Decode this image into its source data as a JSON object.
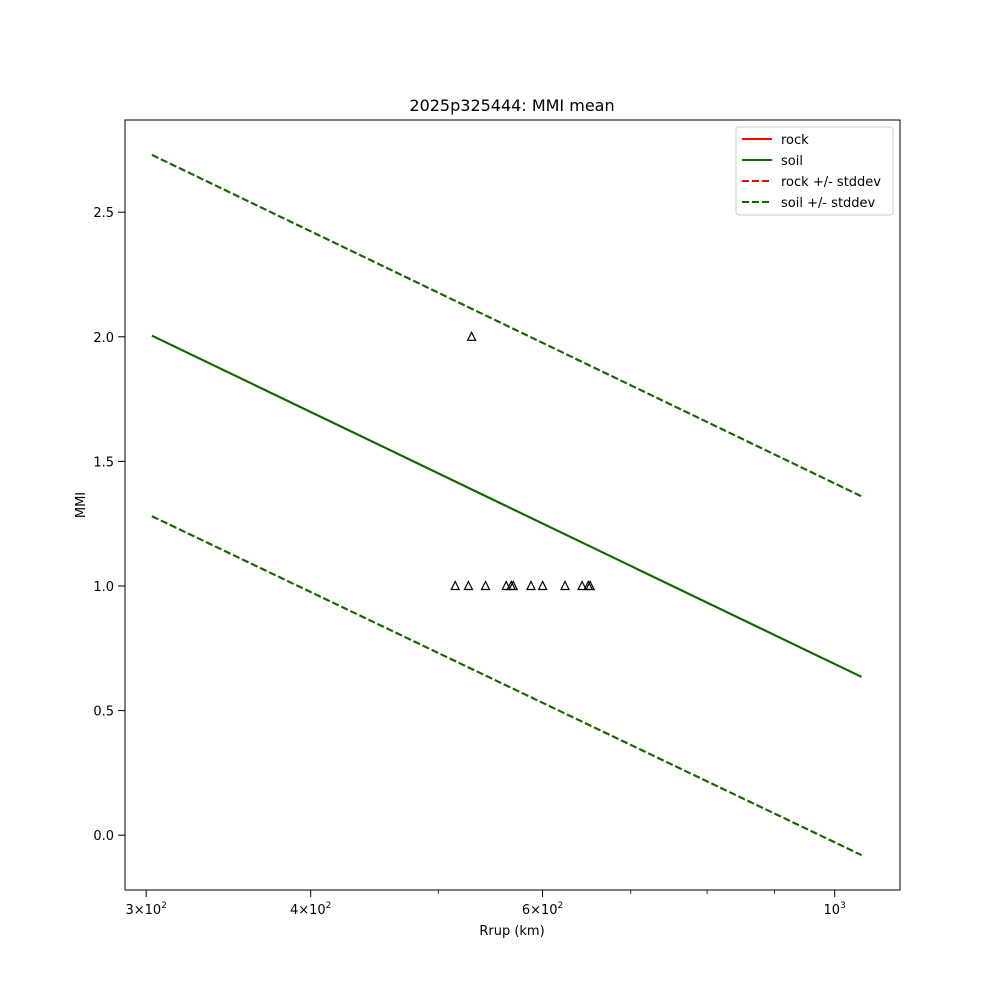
{
  "chart_data": {
    "type": "line",
    "title": "2025p325444: MMI mean",
    "xlabel": "Rrup (km)",
    "ylabel": "MMI",
    "xscale": "log",
    "xlim": [
      289.1,
      1121.0
    ],
    "ylim": [
      -0.22,
      2.87
    ],
    "grid": false,
    "legend_position": "top-right",
    "x_ticks": [
      {
        "value": 300,
        "base": "3",
        "exp": "2"
      },
      {
        "value": 400,
        "base": "4",
        "exp": "2"
      },
      {
        "value": 600,
        "base": "6",
        "exp": "2"
      },
      {
        "value": 1000,
        "base": "",
        "exp": "3"
      }
    ],
    "x_minor_ticks": [
      500,
      700,
      800,
      900
    ],
    "y_ticks": [
      "0.0",
      "0.5",
      "1.0",
      "1.5",
      "2.0",
      "2.5"
    ],
    "series": [
      {
        "name": "rock",
        "style": "solid",
        "color": "#ff0000",
        "x": [
          303,
          1048
        ],
        "y": [
          2.005,
          0.635
        ]
      },
      {
        "name": "soil",
        "style": "solid",
        "color": "#007000",
        "x": [
          303,
          1048
        ],
        "y": [
          2.005,
          0.635
        ]
      },
      {
        "name": "rock +/- stddev",
        "style": "dashed",
        "color": "#ff0000",
        "x": [
          303,
          1048
        ],
        "y": [
          2.73,
          1.36
        ]
      },
      {
        "name": "rock +/- stddev",
        "style": "dashed",
        "color": "#ff0000",
        "x": [
          303,
          1048
        ],
        "y": [
          1.28,
          -0.08
        ]
      },
      {
        "name": "soil +/- stddev",
        "style": "dashed",
        "color": "#007000",
        "x": [
          303,
          1048
        ],
        "y": [
          2.73,
          1.36
        ]
      },
      {
        "name": "soil +/- stddev",
        "style": "dashed",
        "color": "#007000",
        "x": [
          303,
          1048
        ],
        "y": [
          1.28,
          -0.08
        ]
      }
    ],
    "observations": {
      "marker": "triangle",
      "x": [
        515,
        527,
        530,
        543,
        563,
        568,
        570,
        588,
        600,
        624,
        643,
        650,
        652
      ],
      "y": [
        1.0,
        1.0,
        2.0,
        1.0,
        1.0,
        1.0,
        1.0,
        1.0,
        1.0,
        1.0,
        1.0,
        1.0,
        1.0
      ]
    },
    "legend": [
      {
        "label": "rock",
        "style": "solid",
        "color": "#ff0000"
      },
      {
        "label": "soil",
        "style": "solid",
        "color": "#007000"
      },
      {
        "label": "rock +/- stddev",
        "style": "dashed",
        "color": "#ff0000"
      },
      {
        "label": "soil +/- stddev",
        "style": "dashed",
        "color": "#007000"
      }
    ]
  }
}
